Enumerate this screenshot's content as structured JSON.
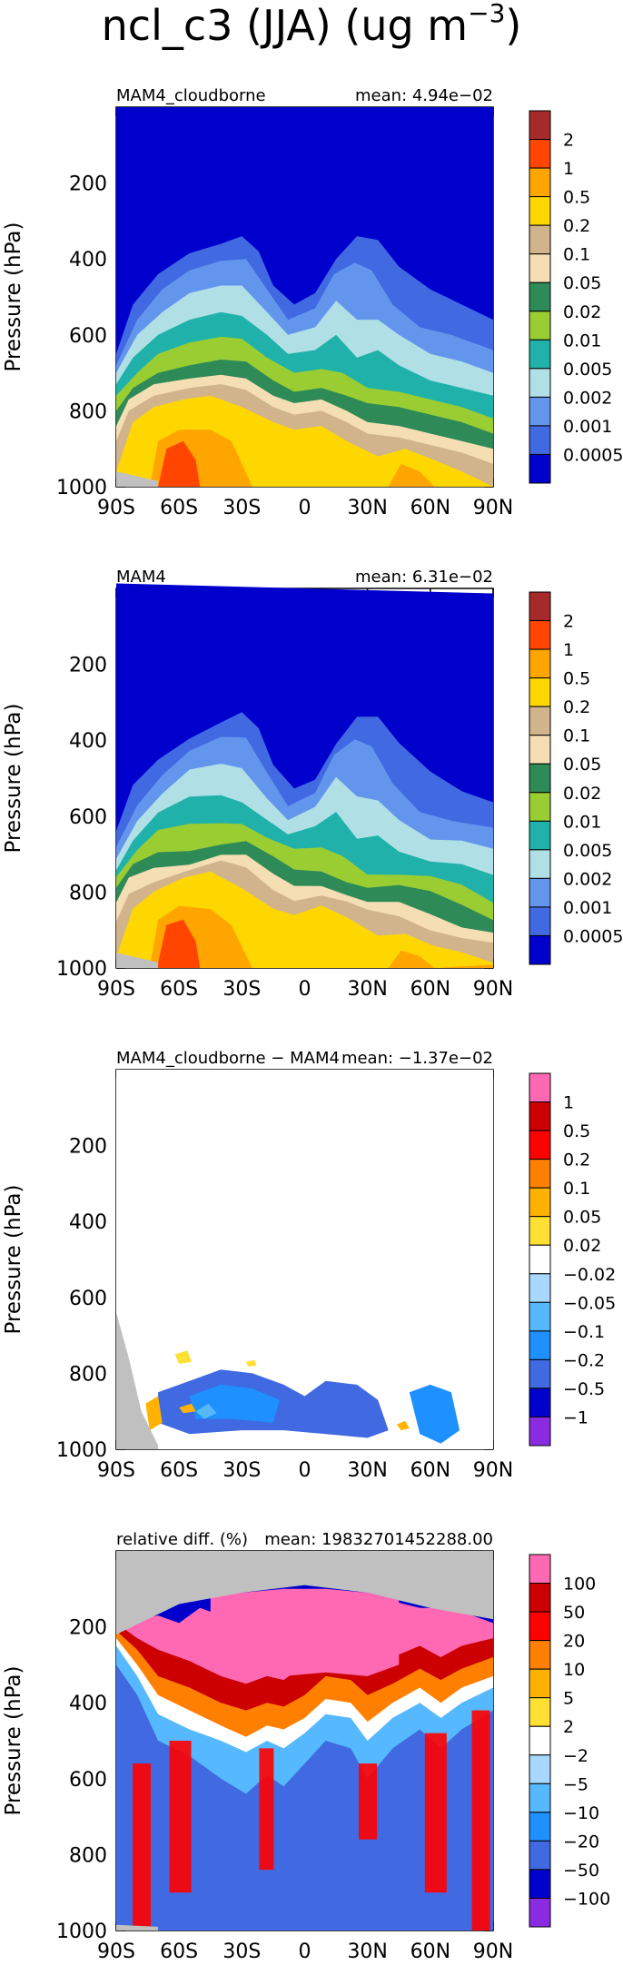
{
  "figure": {
    "title_main": "ncl_c3 (JJA) (ug m",
    "title_sup": "−3",
    "title_close": ")"
  },
  "chart_data": [
    {
      "type": "heatmap",
      "left_label": "MAM4_cloudborne",
      "mean_label": "mean: 4.94e−02",
      "ylabel": "Pressure (hPa)",
      "ylim": [
        1000,
        0
      ],
      "xlim": [
        -90,
        90
      ],
      "yticks": [
        "200",
        "400",
        "600",
        "800",
        "1000"
      ],
      "xticks": [
        "90S",
        "60S",
        "30S",
        "0",
        "30N",
        "60N",
        "90N"
      ],
      "colorbar": [
        "2",
        "1",
        "0.5",
        "0.2",
        "0.1",
        "0.05",
        "0.02",
        "0.01",
        "0.005",
        "0.002",
        "0.001",
        "0.0005"
      ],
      "colors": [
        "#a52a2a",
        "#ff4500",
        "#ffa500",
        "#ffd700",
        "#d2b48c",
        "#f5deb3",
        "#2e8b57",
        "#9acd32",
        "#20b2aa",
        "#b0e0e6",
        "#6495ed",
        "#4169e1",
        "#0000cd"
      ]
    },
    {
      "type": "heatmap",
      "left_label": "MAM4",
      "mean_label": "mean: 6.31e−02",
      "ylabel": "Pressure (hPa)",
      "ylim": [
        1000,
        0
      ],
      "xlim": [
        -90,
        90
      ],
      "yticks": [
        "200",
        "400",
        "600",
        "800",
        "1000"
      ],
      "xticks": [
        "90S",
        "60S",
        "30S",
        "0",
        "30N",
        "60N",
        "90N"
      ],
      "colorbar": [
        "2",
        "1",
        "0.5",
        "0.2",
        "0.1",
        "0.05",
        "0.02",
        "0.01",
        "0.005",
        "0.002",
        "0.001",
        "0.0005"
      ],
      "colors": [
        "#a52a2a",
        "#ff4500",
        "#ffa500",
        "#ffd700",
        "#d2b48c",
        "#f5deb3",
        "#2e8b57",
        "#9acd32",
        "#20b2aa",
        "#b0e0e6",
        "#6495ed",
        "#4169e1",
        "#0000cd"
      ]
    },
    {
      "type": "heatmap",
      "left_label": "MAM4_cloudborne − MAM4",
      "mean_label": "mean: −1.37e−02",
      "ylabel": "Pressure (hPa)",
      "ylim": [
        1000,
        0
      ],
      "xlim": [
        -90,
        90
      ],
      "yticks": [
        "200",
        "400",
        "600",
        "800",
        "1000"
      ],
      "xticks": [
        "90S",
        "60S",
        "30S",
        "0",
        "30N",
        "60N",
        "90N"
      ],
      "colorbar": [
        "1",
        "0.5",
        "0.2",
        "0.1",
        "0.05",
        "0.02",
        "−0.02",
        "−0.05",
        "−0.1",
        "−0.2",
        "−0.5",
        "−1"
      ],
      "colors": [
        "#ff69b4",
        "#cc0000",
        "#ff0000",
        "#ff7f00",
        "#ffb300",
        "#ffe033",
        "#ffffff",
        "#a8d8ff",
        "#56b9ff",
        "#1e90ff",
        "#4169e1",
        "#0000cd",
        "#8a2be2"
      ]
    },
    {
      "type": "heatmap",
      "left_label": "relative diff. (%)",
      "mean_label": "mean: 19832701452288.00",
      "ylabel": "Pressure (hPa)",
      "ylim": [
        1000,
        0
      ],
      "xlim": [
        -90,
        90
      ],
      "yticks": [
        "200",
        "400",
        "600",
        "800",
        "1000"
      ],
      "xticks": [
        "90S",
        "60S",
        "30S",
        "0",
        "30N",
        "60N",
        "90N"
      ],
      "colorbar": [
        "100",
        "50",
        "20",
        "10",
        "5",
        "2",
        "−2",
        "−5",
        "−10",
        "−20",
        "−50",
        "−100"
      ],
      "colors": [
        "#ff69b4",
        "#cc0000",
        "#ff0000",
        "#ff7f00",
        "#ffb300",
        "#ffe033",
        "#ffffff",
        "#a8d8ff",
        "#56b9ff",
        "#1e90ff",
        "#4169e1",
        "#0000cd",
        "#8a2be2"
      ]
    }
  ]
}
